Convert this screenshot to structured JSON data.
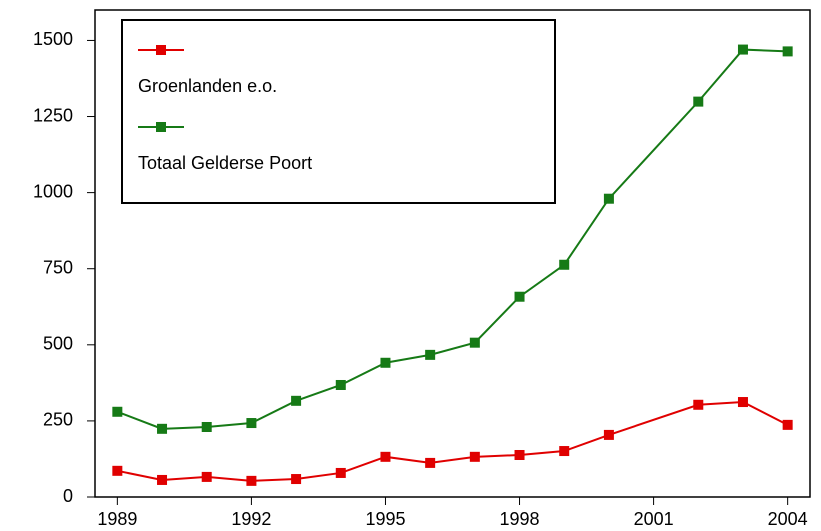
{
  "chart_data": {
    "type": "line",
    "x": [
      1989,
      1990,
      1991,
      1992,
      1993,
      1994,
      1995,
      1996,
      1997,
      1998,
      1999,
      2000,
      2002,
      2003,
      2004
    ],
    "series": [
      {
        "name": "Groenlanden e.o.",
        "color": "#e00000",
        "values": [
          86,
          56,
          66,
          53,
          59,
          79,
          132,
          112,
          132,
          138,
          151,
          204,
          303,
          312,
          237
        ]
      },
      {
        "name": "Totaal Gelderse Poort",
        "color": "#167a16",
        "values": [
          280,
          224,
          230,
          243,
          316,
          368,
          441,
          467,
          507,
          658,
          763,
          980,
          1299,
          1470,
          1464
        ]
      }
    ],
    "xlim": [
      1988.5,
      2004.5
    ],
    "xticks": [
      1989,
      1992,
      1995,
      1998,
      2001,
      2004
    ],
    "ylim": [
      0,
      1600
    ],
    "yticks": [
      0,
      250,
      500,
      750,
      1000,
      1250,
      1500
    ],
    "legend": "top-left"
  }
}
